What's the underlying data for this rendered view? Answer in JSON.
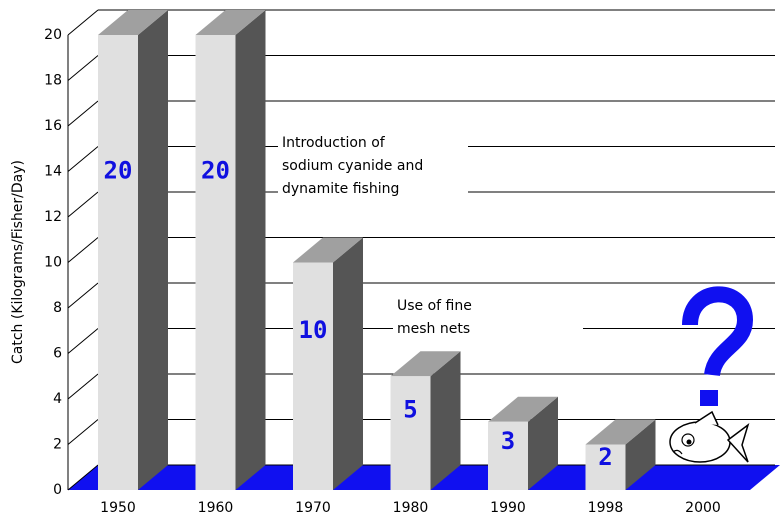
{
  "chart_data": {
    "type": "bar3d",
    "y_label": "Catch (Kilograms/Fisher/Day)",
    "categories": [
      "1950",
      "1960",
      "1970",
      "1980",
      "1990",
      "1998",
      "2000"
    ],
    "values": [
      20,
      20,
      10,
      5,
      3,
      2,
      null
    ],
    "value_labels": [
      "20",
      "20",
      "10",
      "5",
      "3",
      "2",
      null
    ],
    "ylim": [
      0,
      20
    ],
    "yticks": [
      0,
      2,
      4,
      6,
      8,
      10,
      12,
      14,
      16,
      18,
      20
    ],
    "grid": true,
    "colors": {
      "front": "#e0e0e0",
      "top": "#a0a0a0",
      "side": "#555555",
      "floor": "#1010f0",
      "label": "#1010e0"
    },
    "annotations": [
      {
        "lines": [
          "Introduction of",
          "sodium cyanide and",
          "dynamite fishing"
        ]
      },
      {
        "lines": [
          "Use of fine",
          "mesh nets"
        ]
      }
    ]
  }
}
